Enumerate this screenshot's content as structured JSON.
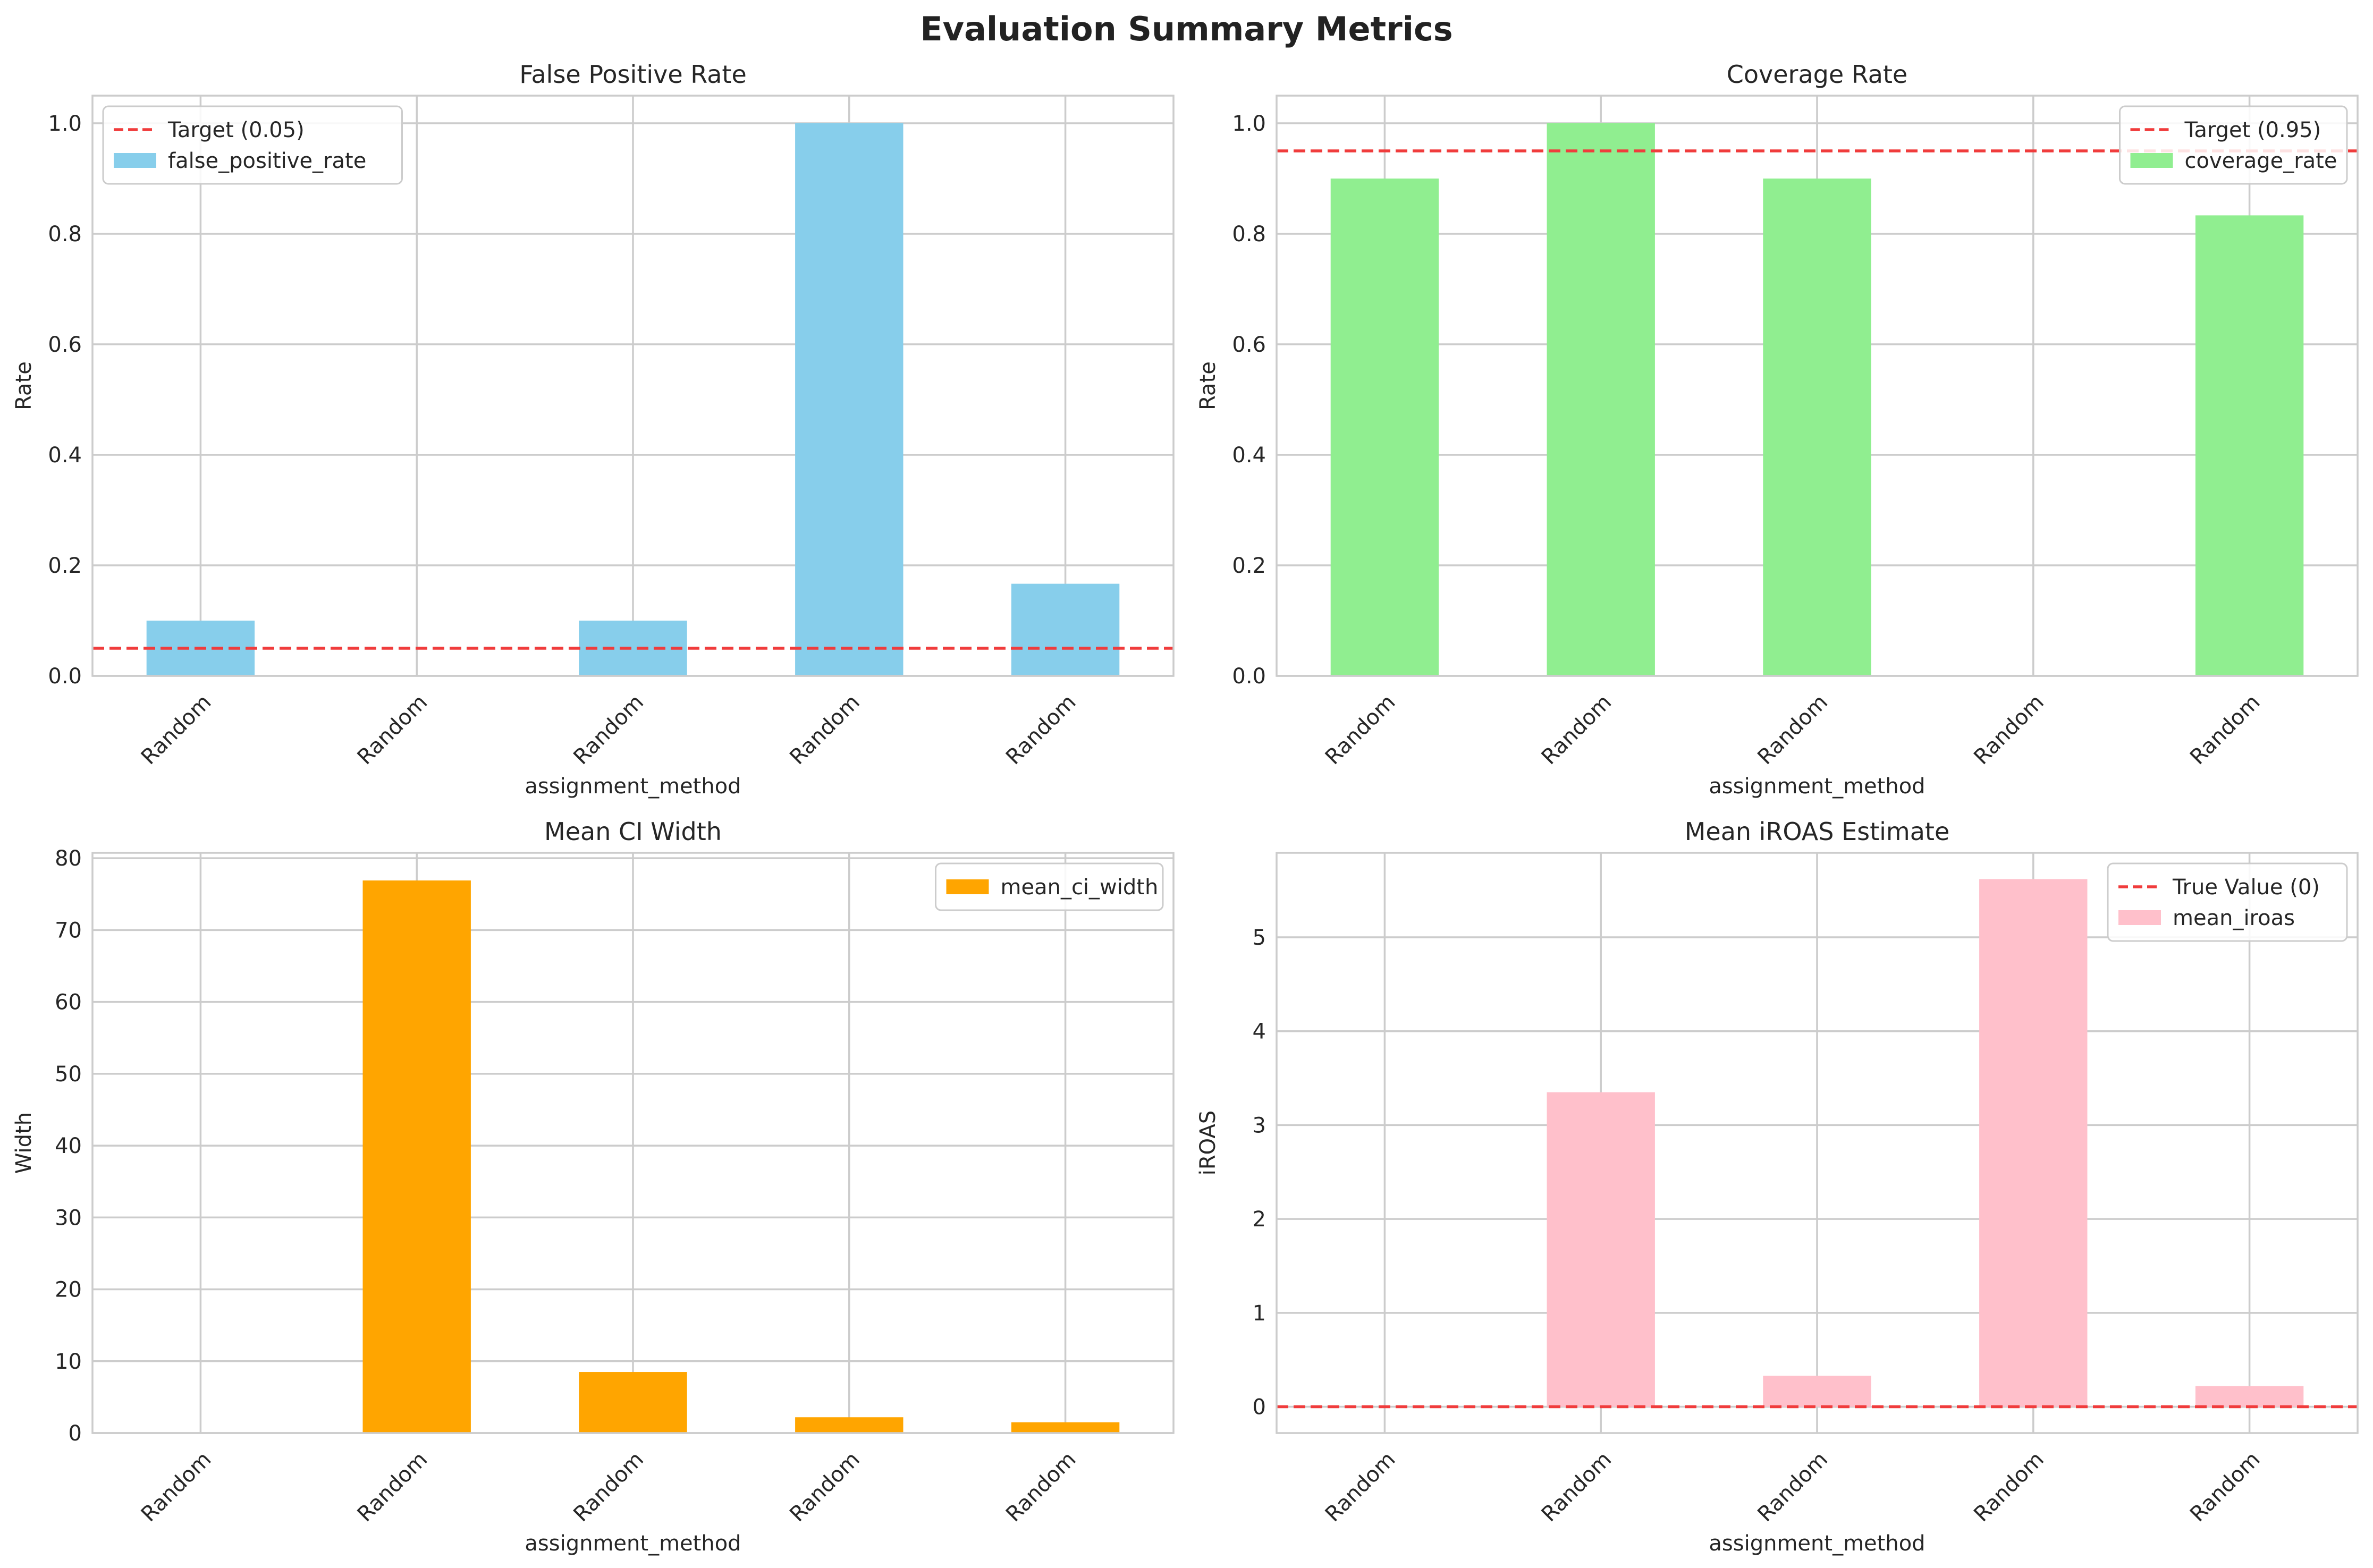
{
  "figure": {
    "title": "Evaluation Summary Metrics"
  },
  "chart_data": [
    {
      "type": "bar",
      "title": "False Positive Rate",
      "xlabel": "assignment_method",
      "ylabel": "Rate",
      "categories": [
        "Random",
        "Random",
        "Random",
        "Random",
        "Random"
      ],
      "series": [
        {
          "name": "false_positive_rate",
          "values": [
            0.1,
            0.0,
            0.1,
            1.0,
            0.1667
          ],
          "color": "#87CEEB"
        }
      ],
      "ylim": [
        0,
        1.05
      ],
      "yticks": [
        0.0,
        0.2,
        0.4,
        0.6,
        0.8,
        1.0
      ],
      "ytick_labels": [
        "0.0",
        "0.2",
        "0.4",
        "0.6",
        "0.8",
        "1.0"
      ],
      "reference_line": {
        "label": "Target (0.05)",
        "value": 0.05,
        "color": "#F03C3C"
      },
      "grid": true,
      "legend": "top-left"
    },
    {
      "type": "bar",
      "title": "Coverage Rate",
      "xlabel": "assignment_method",
      "ylabel": "Rate",
      "categories": [
        "Random",
        "Random",
        "Random",
        "Random",
        "Random"
      ],
      "series": [
        {
          "name": "coverage_rate",
          "values": [
            0.9,
            1.0,
            0.9,
            0.0,
            0.8333
          ],
          "color": "#90EE90"
        }
      ],
      "ylim": [
        0,
        1.05
      ],
      "yticks": [
        0.0,
        0.2,
        0.4,
        0.6,
        0.8,
        1.0
      ],
      "ytick_labels": [
        "0.0",
        "0.2",
        "0.4",
        "0.6",
        "0.8",
        "1.0"
      ],
      "reference_line": {
        "label": "Target (0.95)",
        "value": 0.95,
        "color": "#F03C3C"
      },
      "grid": true,
      "legend": "top-right"
    },
    {
      "type": "bar",
      "title": "Mean CI Width",
      "xlabel": "assignment_method",
      "ylabel": "Width",
      "categories": [
        "Random",
        "Random",
        "Random",
        "Random",
        "Random"
      ],
      "series": [
        {
          "name": "mean_ci_width",
          "values": [
            0.0,
            76.9,
            8.5,
            2.2,
            1.5
          ],
          "color": "#FFA500"
        }
      ],
      "ylim": [
        0,
        80.75
      ],
      "yticks": [
        0,
        10,
        20,
        30,
        40,
        50,
        60,
        70,
        80
      ],
      "ytick_labels": [
        "0",
        "10",
        "20",
        "30",
        "40",
        "50",
        "60",
        "70",
        "80"
      ],
      "grid": true,
      "legend": "top-right"
    },
    {
      "type": "bar",
      "title": "Mean iROAS Estimate",
      "xlabel": "assignment_method",
      "ylabel": "iROAS",
      "categories": [
        "Random",
        "Random",
        "Random",
        "Random",
        "Random"
      ],
      "series": [
        {
          "name": "mean_iroas",
          "values": [
            0.0,
            3.35,
            0.33,
            5.62,
            0.22
          ],
          "color": "#FFC0CB"
        }
      ],
      "ylim": [
        -0.28,
        5.9
      ],
      "yticks": [
        0,
        1,
        2,
        3,
        4,
        5
      ],
      "ytick_labels": [
        "0",
        "1",
        "2",
        "3",
        "4",
        "5"
      ],
      "reference_line": {
        "label": "True Value (0)",
        "value": 0,
        "color": "#F03C3C"
      },
      "grid": true,
      "legend": "top-right"
    }
  ]
}
